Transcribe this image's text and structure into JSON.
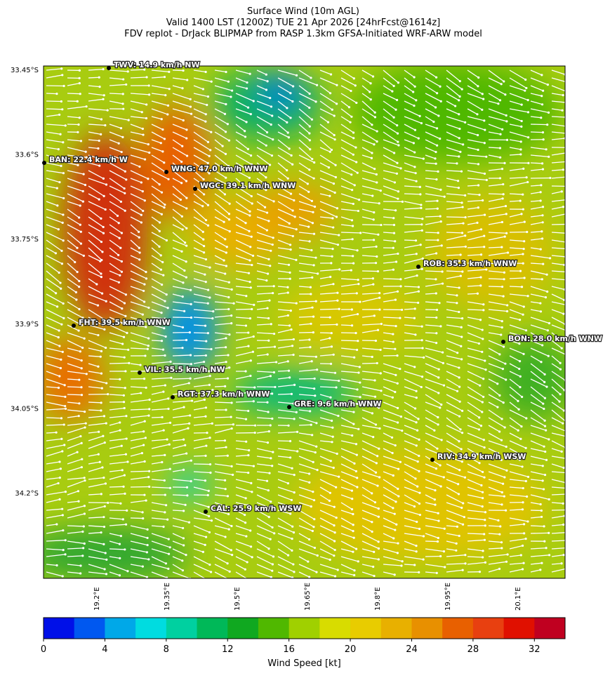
{
  "header": {
    "title_lines": [
      "Surface Wind (10m AGL)",
      "Valid 1400 LST (1200Z) TUE 21 Apr 2026 [24hrFcst@1614z]",
      "FDV replot - DrJack BLIPMAP from RASP 1.3km GFSA-Initiated WRF-ARW model"
    ]
  },
  "map": {
    "lat_ticks": [
      {
        "value": 33.45,
        "label": "33.45°S"
      },
      {
        "value": 33.6,
        "label": "33.6°S"
      },
      {
        "value": 33.75,
        "label": "33.75°S"
      },
      {
        "value": 33.9,
        "label": "33.9°S"
      },
      {
        "value": 34.05,
        "label": "34.05°S"
      },
      {
        "value": 34.2,
        "label": "34.2°S"
      }
    ],
    "lon_ticks": [
      {
        "value": 19.2,
        "label": "19.2°E"
      },
      {
        "value": 19.35,
        "label": "19.35°E"
      },
      {
        "value": 19.5,
        "label": "19.5°E"
      },
      {
        "value": 19.65,
        "label": "19.65°E"
      },
      {
        "value": 19.8,
        "label": "19.8°E"
      },
      {
        "value": 19.95,
        "label": "19.95°E"
      },
      {
        "value": 20.1,
        "label": "20.1°E"
      }
    ],
    "stations": [
      "TWV: 14.9 km/h NW",
      "BAN: 22.4 km/h W",
      "WNG: 47.0 km/h WNW",
      "WGC: 39.1 km/h WNW",
      "ROB: 35.3 km/h WNW",
      "FHT: 39.5 km/h WNW",
      "BON: 28.0 km/h WNW",
      "VIL: 35.5 km/h NW",
      "RGT: 37.3 km/h WNW",
      "GRE: 9.6 km/h WNW",
      "RIV: 34.9 km/h WSW",
      "CAL: 25.9 km/h WSW"
    ]
  },
  "colorbar": {
    "range": [
      0,
      34
    ],
    "ticks": [
      0,
      4,
      8,
      12,
      16,
      20,
      24,
      28,
      32
    ],
    "label": "Wind Speed [kt]",
    "colors": [
      "#0010e8",
      "#0058f0",
      "#00a8e8",
      "#00dce0",
      "#00d0a0",
      "#00b858",
      "#10a820",
      "#50b800",
      "#a0d000",
      "#d8dc00",
      "#e8cc00",
      "#e8b000",
      "#e89000",
      "#e86000",
      "#e84010",
      "#e01000",
      "#c00020"
    ]
  }
}
